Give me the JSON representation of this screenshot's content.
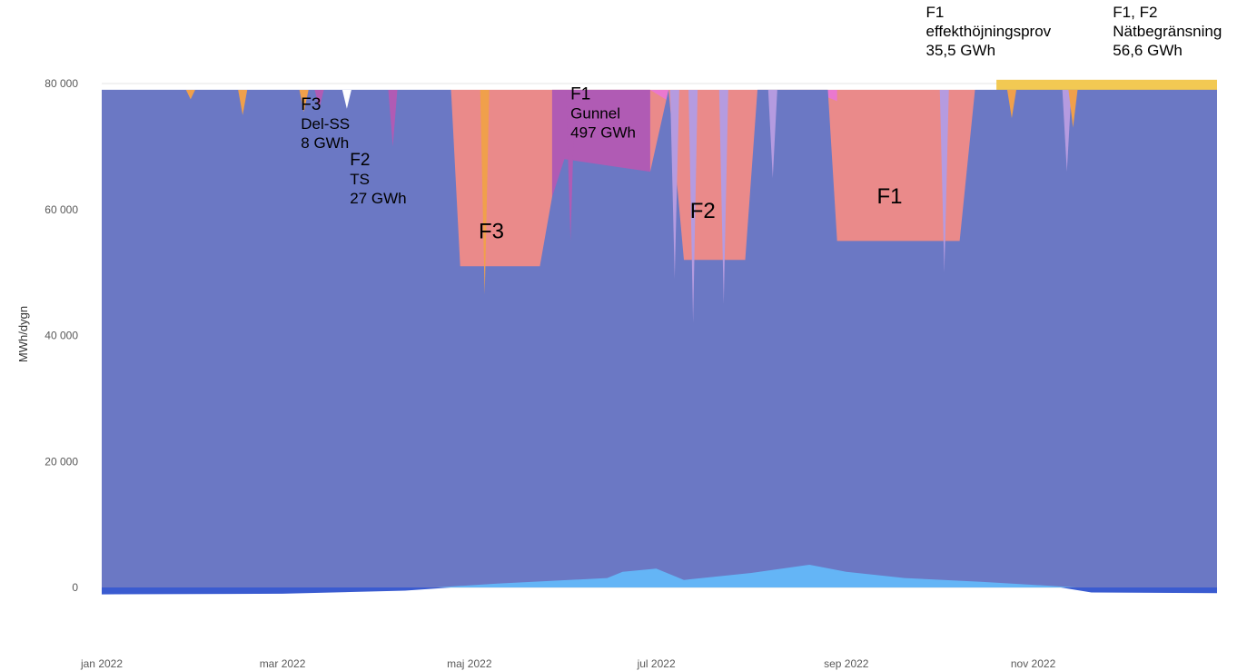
{
  "chart_data": {
    "type": "area",
    "ylabel": "MWh/dygn",
    "ylim": [
      -2000,
      84000
    ],
    "y_ticks": [
      {
        "value": 0,
        "label": "0"
      },
      {
        "value": 20000,
        "label": "20 000"
      },
      {
        "value": 40000,
        "label": "40 000"
      },
      {
        "value": 60000,
        "label": "60 000"
      },
      {
        "value": 80000,
        "label": "80 000"
      }
    ],
    "x_range": [
      "2022-01-01",
      "2022-12-31"
    ],
    "x_ticks": [
      {
        "date": "2022-01-01",
        "label": "jan 2022"
      },
      {
        "date": "2022-03-01",
        "label": "mar 2022"
      },
      {
        "date": "2022-05-01",
        "label": "maj 2022"
      },
      {
        "date": "2022-07-01",
        "label": "jul 2022"
      },
      {
        "date": "2022-09-01",
        "label": "sep 2022"
      },
      {
        "date": "2022-11-01",
        "label": "nov 2022"
      }
    ],
    "colors": {
      "production": "#6b78c4",
      "outage_pink": "#ea8a8a",
      "purple": "#b05bb4",
      "lavender": "#b59be0",
      "magenta": "#ea78cf",
      "orange": "#f0a04b",
      "yellow": "#f2c953",
      "light_blue": "#64b5f6",
      "dark_blue": "#3a5bd0"
    },
    "series": [
      {
        "key": "production",
        "points": [
          [
            "2022-01-01",
            79000
          ],
          [
            "2022-04-25",
            79000
          ],
          [
            "2022-04-28",
            51000
          ],
          [
            "2022-05-24",
            51000
          ],
          [
            "2022-05-28",
            62000
          ],
          [
            "2022-06-01",
            68000
          ],
          [
            "2022-06-15",
            67000
          ],
          [
            "2022-06-29",
            66000
          ],
          [
            "2022-07-05",
            79000
          ],
          [
            "2022-07-10",
            52000
          ],
          [
            "2022-07-30",
            52000
          ],
          [
            "2022-08-03",
            79000
          ],
          [
            "2022-08-26",
            79000
          ],
          [
            "2022-08-29",
            55000
          ],
          [
            "2022-10-08",
            55000
          ],
          [
            "2022-10-13",
            79000
          ],
          [
            "2022-12-31",
            79000
          ]
        ]
      },
      {
        "key": "outage_pink",
        "points": [
          [
            "2022-04-25",
            79000
          ],
          [
            "2022-05-28",
            79000
          ],
          [
            "2022-07-05",
            79000
          ],
          [
            "2022-08-03",
            79000
          ],
          [
            "2022-08-26",
            79000
          ],
          [
            "2022-10-13",
            79000
          ]
        ]
      },
      {
        "key": "purple",
        "points": [
          [
            "2022-05-28",
            79000
          ],
          [
            "2022-06-10",
            79000
          ],
          [
            "2022-06-29",
            79000
          ]
        ]
      }
    ],
    "dips": [
      {
        "date": "2022-01-30",
        "value": 77500,
        "color": "orange"
      },
      {
        "date": "2022-02-16",
        "value": 75000,
        "color": "orange"
      },
      {
        "date": "2022-03-08",
        "value": 75500,
        "color": "orange"
      },
      {
        "date": "2022-03-13",
        "value": 76000,
        "color": "purple"
      },
      {
        "date": "2022-03-22",
        "value": 76000,
        "color": "white"
      },
      {
        "date": "2022-04-06",
        "value": 70000,
        "color": "purple"
      },
      {
        "date": "2022-05-06",
        "value": 46500,
        "color": "orange"
      },
      {
        "date": "2022-06-03",
        "value": 55000,
        "color": "purple"
      },
      {
        "date": "2022-07-07",
        "value": 49000,
        "color": "lavender"
      },
      {
        "date": "2022-07-13",
        "value": 42000,
        "color": "lavender"
      },
      {
        "date": "2022-07-23",
        "value": 45000,
        "color": "lavender"
      },
      {
        "date": "2022-08-08",
        "value": 65000,
        "color": "lavender"
      },
      {
        "date": "2022-10-03",
        "value": 50000,
        "color": "lavender"
      },
      {
        "date": "2022-10-25",
        "value": 74500,
        "color": "orange"
      },
      {
        "date": "2022-11-12",
        "value": 66000,
        "color": "lavender"
      },
      {
        "date": "2022-11-14",
        "value": 73000,
        "color": "orange"
      }
    ],
    "top_band": {
      "from": "2022-10-20",
      "to": "2022-12-31",
      "value": 80600,
      "color": "yellow"
    },
    "bottom_series": [
      {
        "key": "light_blue",
        "points": [
          [
            "2022-04-20",
            0
          ],
          [
            "2022-05-10",
            600
          ],
          [
            "2022-06-15",
            1500
          ],
          [
            "2022-06-20",
            2500
          ],
          [
            "2022-07-01",
            3000
          ],
          [
            "2022-07-10",
            1200
          ],
          [
            "2022-08-01",
            2300
          ],
          [
            "2022-08-20",
            3600
          ],
          [
            "2022-09-01",
            2500
          ],
          [
            "2022-09-20",
            1500
          ],
          [
            "2022-10-15",
            900
          ],
          [
            "2022-11-05",
            300
          ],
          [
            "2022-11-15",
            0
          ]
        ]
      },
      {
        "key": "dark_blue",
        "points": [
          [
            "2022-01-01",
            -1100
          ],
          [
            "2022-03-01",
            -1000
          ],
          [
            "2022-04-10",
            -500
          ],
          [
            "2022-04-25",
            0
          ],
          [
            "2022-11-10",
            0
          ],
          [
            "2022-11-20",
            -800
          ],
          [
            "2022-12-31",
            -900
          ]
        ]
      }
    ],
    "annotations": [
      {
        "lines": [
          "F3",
          "Del-SS",
          "8 GWh"
        ],
        "sizes": [
          "mid",
          "sm",
          "sm"
        ],
        "date": "2022-03-07",
        "value": 75800
      },
      {
        "lines": [
          "F2",
          "TS",
          "27 GWh"
        ],
        "sizes": [
          "mid",
          "sm",
          "sm"
        ],
        "date": "2022-03-23",
        "value": 67000
      },
      {
        "lines": [
          "F3"
        ],
        "sizes": [
          "big"
        ],
        "date": "2022-05-04",
        "value": 55400
      },
      {
        "lines": [
          "F1",
          "Gunnel",
          "497 GWh"
        ],
        "sizes": [
          "mid",
          "sm",
          "sm"
        ],
        "date": "2022-06-03",
        "value": 77500
      },
      {
        "lines": [
          "F2"
        ],
        "sizes": [
          "big"
        ],
        "date": "2022-07-12",
        "value": 58700
      },
      {
        "lines": [
          "F1"
        ],
        "sizes": [
          "big"
        ],
        "date": "2022-09-11",
        "value": 61000
      },
      {
        "lines": [
          "F1",
          "effekthöjningsprov",
          "35,5 GWh"
        ],
        "sizes": [
          "sm",
          "sm",
          "sm"
        ],
        "date": "2022-09-27",
        "value": 90500
      },
      {
        "lines": [
          "F1, F2",
          "Nätbegränsning",
          "56,6 GWh"
        ],
        "sizes": [
          "sm",
          "sm",
          "sm"
        ],
        "date": "2022-11-27",
        "value": 90500
      }
    ]
  }
}
